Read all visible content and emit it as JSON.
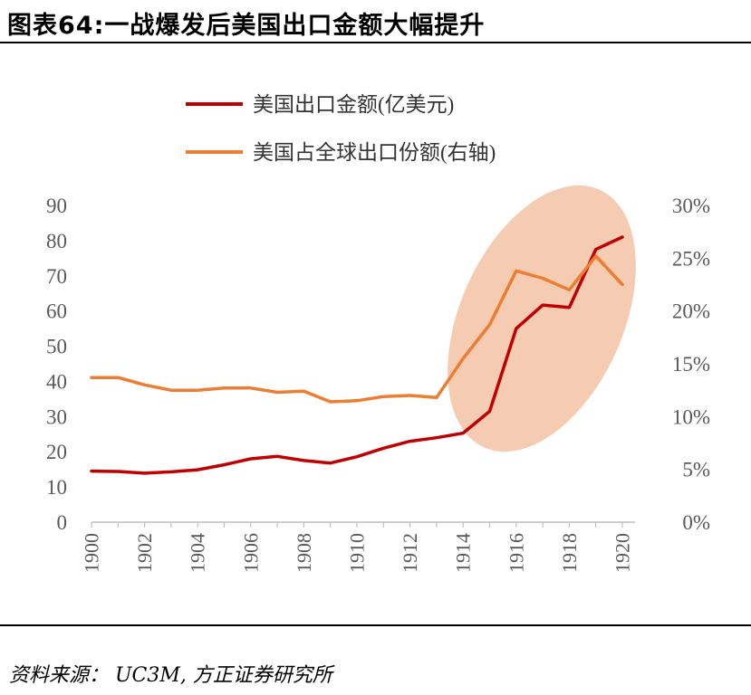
{
  "header": {
    "title": "图表64:一战爆发后美国出口金额大幅提升"
  },
  "footer": {
    "source": "资料来源： UC3M, 方正证券研究所"
  },
  "chart_data": {
    "type": "line",
    "title": "图表64:一战爆发后美国出口金额大幅提升",
    "x": [
      1900,
      1901,
      1902,
      1903,
      1904,
      1905,
      1906,
      1907,
      1908,
      1909,
      1910,
      1911,
      1912,
      1913,
      1914,
      1915,
      1916,
      1917,
      1918,
      1919,
      1920
    ],
    "x_tick_labels": [
      "1900",
      "1902",
      "1904",
      "1906",
      "1908",
      "1910",
      "1912",
      "1914",
      "1916",
      "1918",
      "1920"
    ],
    "y_left_ticks": [
      "0",
      "10",
      "20",
      "30",
      "40",
      "50",
      "60",
      "70",
      "80",
      "90"
    ],
    "y_right_ticks": [
      "0%",
      "5%",
      "10%",
      "15%",
      "20%",
      "25%",
      "30%"
    ],
    "ylim_left": [
      0,
      90
    ],
    "ylim_right": [
      0,
      0.3
    ],
    "series": [
      {
        "name": "美国出口金额(亿美元)",
        "axis": "left",
        "color": "#c00000",
        "values": [
          14.5,
          14.4,
          13.9,
          14.3,
          14.9,
          16.3,
          18.0,
          18.7,
          17.5,
          16.8,
          18.6,
          21.0,
          23.0,
          24.0,
          25.3,
          31.5,
          55.0,
          61.7,
          61.0,
          77.5,
          81.0
        ]
      },
      {
        "name": "美国占全球出口份额(右轴)",
        "axis": "right",
        "color": "#ed7d31",
        "values": [
          0.137,
          0.137,
          0.13,
          0.125,
          0.125,
          0.127,
          0.127,
          0.123,
          0.124,
          0.114,
          0.115,
          0.119,
          0.12,
          0.118,
          0.155,
          0.187,
          0.238,
          0.231,
          0.22,
          0.252,
          0.225
        ]
      }
    ],
    "highlight": {
      "color": "#f5cbb2",
      "shape": "ellipse",
      "covers": "1914-1920"
    },
    "grid": false,
    "legend_position": "top"
  }
}
